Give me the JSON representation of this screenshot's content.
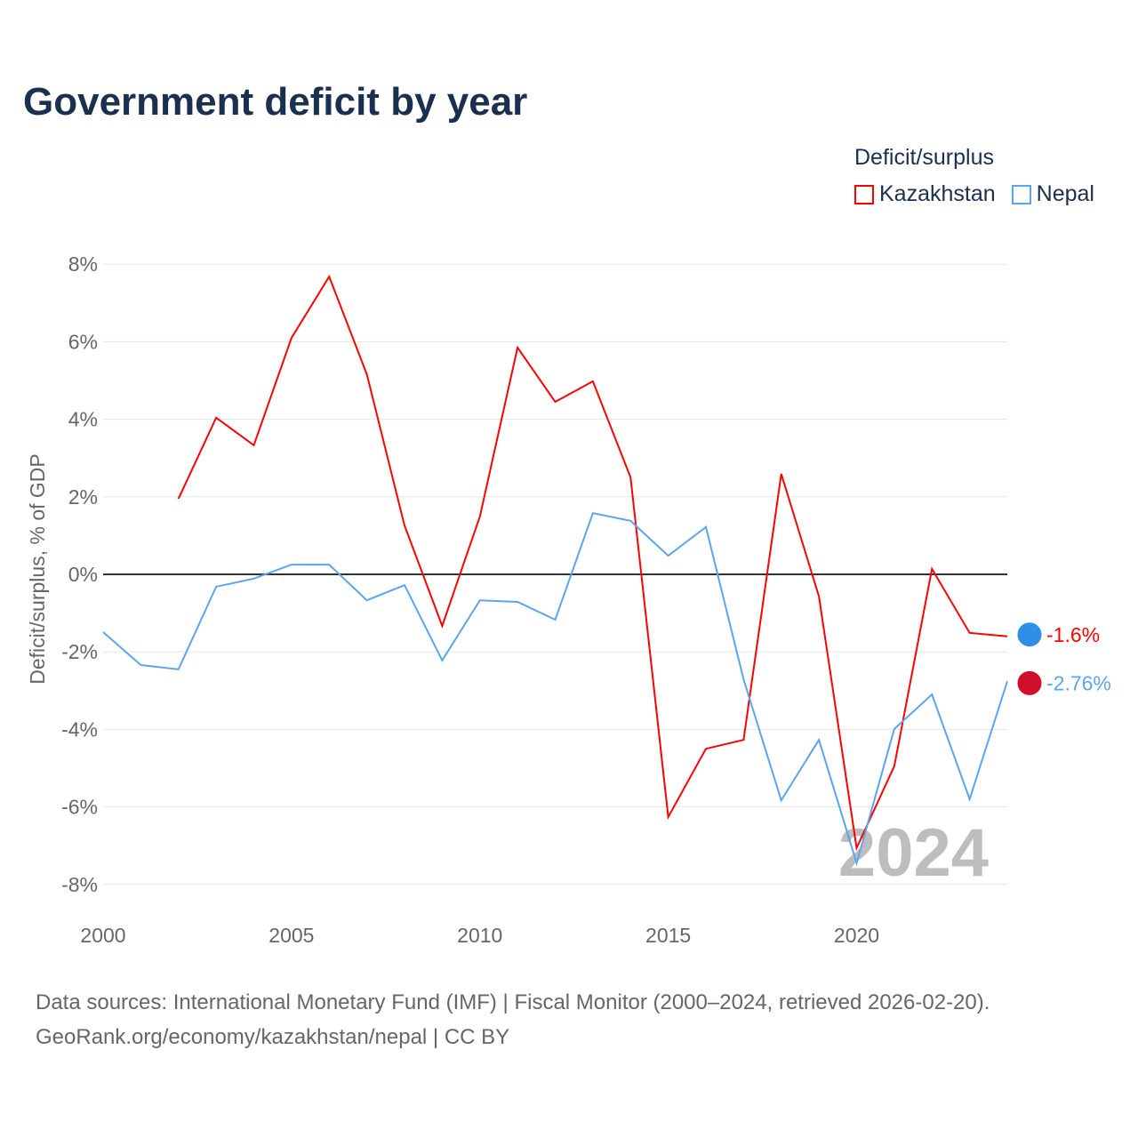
{
  "title": "Government deficit by year",
  "legend": {
    "title": "Deficit/surplus",
    "items": [
      {
        "label": "Kazakhstan",
        "color": "#ff0000"
      },
      {
        "label": "Nepal",
        "color": "#5aa5ee"
      }
    ]
  },
  "watermark_year": "2024",
  "source_lines": [
    "Data sources: International Monetary Fund (IMF) | Fiscal Monitor (2000–2024, retrieved 2026-02-20).",
    "GeoRank.org/economy/kazakhstan/nepal | CC BY"
  ],
  "chart_data": {
    "type": "line",
    "title": "Government deficit by year",
    "xlabel": "",
    "ylabel": "Deficit/surplus, % of GDP",
    "xlim": [
      2000,
      2024
    ],
    "ylim": [
      -8,
      8
    ],
    "x_ticks": [
      2000,
      2005,
      2010,
      2015,
      2020
    ],
    "y_ticks": [
      -8,
      -6,
      -4,
      -2,
      0,
      2,
      4,
      6,
      8
    ],
    "y_tick_labels": [
      "-8%",
      "-6%",
      "-4%",
      "-2%",
      "0%",
      "2%",
      "4%",
      "6%",
      "8%"
    ],
    "grid": true,
    "legend_position": "top-right",
    "series": [
      {
        "name": "Kazakhstan",
        "color": "#ff0000",
        "end_label": "-1.6%",
        "x": [
          2002,
          2003,
          2004,
          2005,
          2006,
          2007,
          2008,
          2009,
          2010,
          2011,
          2012,
          2013,
          2014,
          2015,
          2016,
          2017,
          2018,
          2019,
          2020,
          2021,
          2022,
          2023,
          2024
        ],
        "values": [
          1.95,
          4.04,
          3.33,
          6.1,
          7.68,
          5.16,
          1.26,
          -1.33,
          1.49,
          5.85,
          4.45,
          4.98,
          2.5,
          -6.26,
          -4.5,
          -4.27,
          2.59,
          -0.57,
          -7.06,
          -4.95,
          0.14,
          -1.51,
          -1.6
        ]
      },
      {
        "name": "Nepal",
        "color": "#5aa5ee",
        "end_label": "-2.76%",
        "x": [
          2000,
          2001,
          2002,
          2003,
          2004,
          2005,
          2006,
          2007,
          2008,
          2009,
          2010,
          2011,
          2012,
          2013,
          2014,
          2015,
          2016,
          2017,
          2018,
          2019,
          2020,
          2021,
          2022,
          2023,
          2024
        ],
        "values": [
          -1.49,
          -2.34,
          -2.45,
          -0.32,
          -0.11,
          0.25,
          0.25,
          -0.67,
          -0.28,
          -2.22,
          -0.67,
          -0.71,
          -1.17,
          1.58,
          1.38,
          0.48,
          1.22,
          -2.71,
          -5.83,
          -4.27,
          -7.45,
          -3.99,
          -3.1,
          -5.8,
          -2.76
        ]
      }
    ]
  }
}
